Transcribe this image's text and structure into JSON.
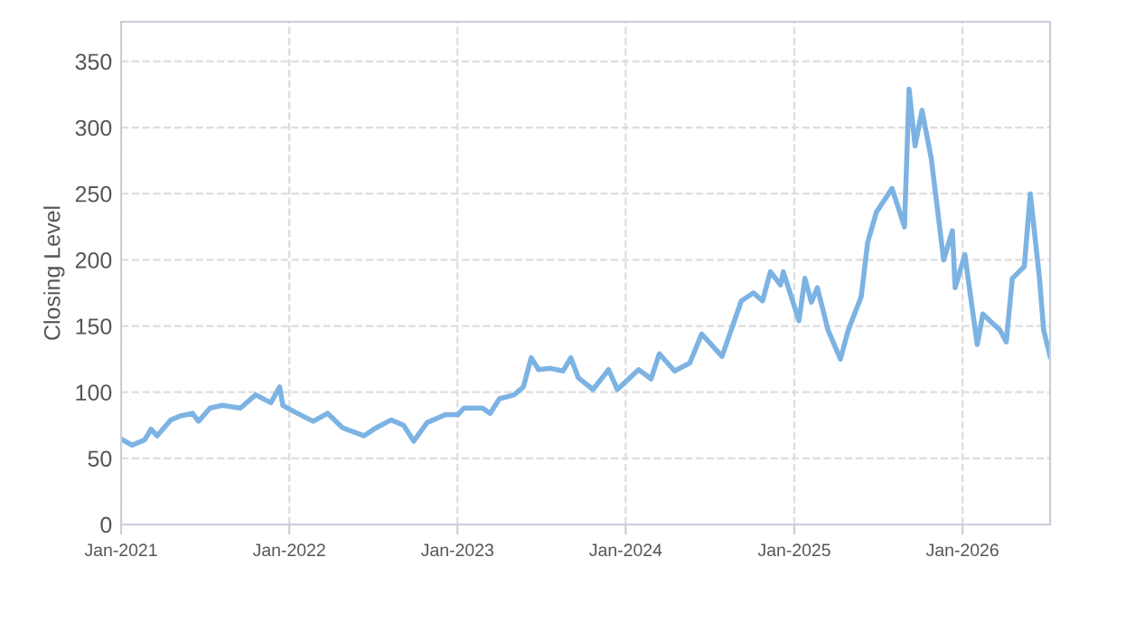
{
  "chart_data": {
    "type": "line",
    "ylabel": "Closing Level",
    "color": "#7db3e3",
    "grid": true,
    "line_style": "solid",
    "xlim": [
      "2021-01-01",
      "2026-07-10"
    ],
    "ylim": [
      0,
      380
    ],
    "xticks": [
      {
        "value": "2021-01-01",
        "label": "Jan-2021"
      },
      {
        "value": "2022-01-01",
        "label": "Jan-2022"
      },
      {
        "value": "2023-01-01",
        "label": "Jan-2023"
      },
      {
        "value": "2024-01-01",
        "label": "Jan-2024"
      },
      {
        "value": "2025-01-01",
        "label": "Jan-2025"
      },
      {
        "value": "2026-01-01",
        "label": "Jan-2026"
      }
    ],
    "yticks": [
      0,
      50,
      100,
      150,
      200,
      250,
      300,
      350
    ],
    "x": [
      "2021-01-04",
      "2021-01-25",
      "2021-02-21",
      "2021-03-07",
      "2021-03-20",
      "2021-04-19",
      "2021-05-09",
      "2021-06-05",
      "2021-06-18",
      "2021-07-13",
      "2021-08-09",
      "2021-09-17",
      "2021-10-20",
      "2021-11-22",
      "2021-12-11",
      "2021-12-18",
      "2022-01-13",
      "2022-02-22",
      "2022-03-25",
      "2022-04-27",
      "2022-06-12",
      "2022-07-08",
      "2022-08-10",
      "2022-09-06",
      "2022-09-28",
      "2022-10-27",
      "2022-12-06",
      "2023-01-02",
      "2023-01-15",
      "2023-02-24",
      "2023-03-13",
      "2023-04-02",
      "2023-05-04",
      "2023-05-24",
      "2023-06-10",
      "2023-06-26",
      "2023-07-22",
      "2023-08-18",
      "2023-09-04",
      "2023-09-20",
      "2023-10-22",
      "2023-11-25",
      "2023-12-14",
      "2024-01-29",
      "2024-02-25",
      "2024-03-14",
      "2024-04-16",
      "2024-05-19",
      "2024-06-14",
      "2024-07-28",
      "2024-09-08",
      "2024-10-04",
      "2024-10-24",
      "2024-11-10",
      "2024-12-02",
      "2024-12-08",
      "2025-01-11",
      "2025-01-24",
      "2025-02-07",
      "2025-02-20",
      "2025-03-15",
      "2025-04-11",
      "2025-04-28",
      "2025-05-26",
      "2025-06-09",
      "2025-06-28",
      "2025-08-01",
      "2025-08-28",
      "2025-09-07",
      "2025-09-20",
      "2025-10-05",
      "2025-10-25",
      "2025-11-21",
      "2025-12-10",
      "2025-12-16",
      "2026-01-06",
      "2026-02-02",
      "2026-02-14",
      "2026-03-23",
      "2026-04-06",
      "2026-04-19",
      "2026-05-15",
      "2026-05-28",
      "2026-06-17",
      "2026-06-26",
      "2026-07-10"
    ],
    "values": [
      64,
      60,
      64,
      72,
      67,
      79,
      82,
      84,
      78,
      88,
      90,
      88,
      98,
      92,
      104,
      90,
      85,
      78,
      84,
      73,
      67,
      73,
      79,
      75,
      63,
      77,
      83,
      83,
      88,
      88,
      84,
      95,
      98,
      104,
      126,
      117,
      118,
      116,
      126,
      111,
      102,
      117,
      102,
      117,
      110,
      129,
      116,
      122,
      144,
      127,
      169,
      175,
      169,
      191,
      181,
      191,
      154,
      186,
      168,
      179,
      147,
      125,
      147,
      172,
      213,
      236,
      254,
      225,
      329,
      286,
      313,
      277,
      200,
      222,
      179,
      204,
      136,
      159,
      147,
      138,
      186,
      195,
      250,
      186,
      147,
      127
    ]
  }
}
